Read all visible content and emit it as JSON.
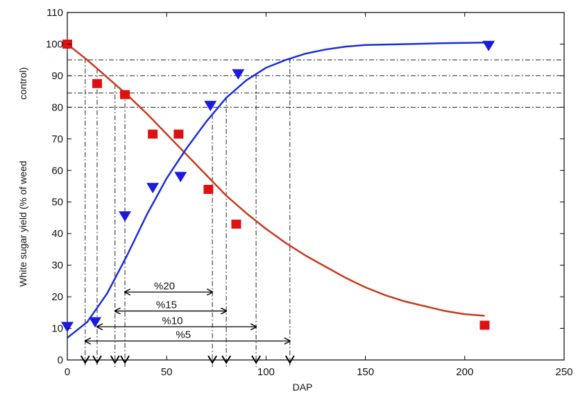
{
  "chart_data": {
    "type": "scatter",
    "xlabel": "DAP",
    "ylabel_line1": "White sugar yield (% of weed",
    "ylabel_line2": "control)",
    "xlim": [
      0,
      250
    ],
    "ylim": [
      0,
      110
    ],
    "x_ticks": [
      0,
      50,
      100,
      150,
      200,
      250
    ],
    "y_ticks": [
      0,
      10,
      20,
      30,
      40,
      50,
      60,
      70,
      80,
      90,
      100,
      110
    ],
    "grid": false,
    "colors": {
      "decreasing": "#c8381c",
      "increasing": "#1a2fd6",
      "square": "#dd1111",
      "triangle": "#1a1ae0"
    },
    "series": [
      {
        "marker": "square",
        "points": [
          [
            0,
            100
          ],
          [
            15,
            87.5
          ],
          [
            29,
            84
          ],
          [
            43,
            71.5
          ],
          [
            56,
            71.5
          ],
          [
            71,
            54
          ],
          [
            85,
            43
          ],
          [
            210,
            11
          ]
        ],
        "fit_curve": [
          [
            0,
            100
          ],
          [
            10,
            95
          ],
          [
            20,
            89.5
          ],
          [
            30,
            84
          ],
          [
            40,
            78
          ],
          [
            50,
            71.5
          ],
          [
            60,
            65
          ],
          [
            70,
            58.5
          ],
          [
            80,
            52
          ],
          [
            90,
            46.5
          ],
          [
            100,
            41.5
          ],
          [
            110,
            37
          ],
          [
            120,
            33
          ],
          [
            130,
            29.5
          ],
          [
            140,
            26
          ],
          [
            150,
            23
          ],
          [
            160,
            20.5
          ],
          [
            170,
            18.5
          ],
          [
            180,
            17
          ],
          [
            190,
            15.5
          ],
          [
            200,
            14.5
          ],
          [
            210,
            14
          ]
        ]
      },
      {
        "marker": "triangle",
        "points": [
          [
            0,
            10.5
          ],
          [
            14,
            12
          ],
          [
            29,
            45.5
          ],
          [
            43,
            54.5
          ],
          [
            57,
            58
          ],
          [
            72,
            80.5
          ],
          [
            86,
            90.5
          ],
          [
            212,
            99.5
          ]
        ],
        "fit_curve": [
          [
            0,
            7
          ],
          [
            10,
            12
          ],
          [
            20,
            21
          ],
          [
            30,
            33
          ],
          [
            40,
            46
          ],
          [
            50,
            57.5
          ],
          [
            60,
            67
          ],
          [
            70,
            75.5
          ],
          [
            80,
            83
          ],
          [
            90,
            88.5
          ],
          [
            100,
            92.5
          ],
          [
            110,
            95
          ],
          [
            120,
            97
          ],
          [
            130,
            98.3
          ],
          [
            140,
            99.2
          ],
          [
            150,
            99.7
          ],
          [
            170,
            100
          ],
          [
            190,
            100.3
          ],
          [
            210,
            100.5
          ]
        ]
      }
    ],
    "threshold_lines_y": [
      95,
      90,
      84.5,
      80
    ],
    "guide_lines_x": [
      9,
      15,
      24,
      29,
      73,
      80,
      95,
      112
    ],
    "ranges": [
      {
        "label": "%20",
        "from": 29,
        "to": 73,
        "y": 21.5
      },
      {
        "label": "%15",
        "from": 24,
        "to": 80,
        "y": 15.5
      },
      {
        "label": "%10",
        "from": 15,
        "to": 95,
        "y": 10.5
      },
      {
        "label": "%5",
        "from": 9,
        "to": 112,
        "y": 6
      }
    ]
  }
}
